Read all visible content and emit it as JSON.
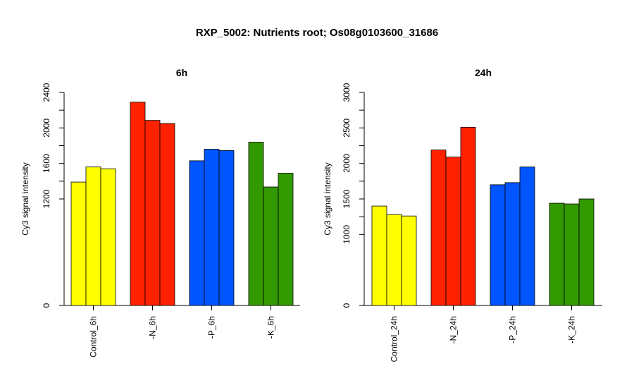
{
  "title": "RXP_5002: Nutrients root; Os08g0103600_31686",
  "chart_data": [
    {
      "type": "bar",
      "title": "6h",
      "ylabel": "Cy3 signal intensity",
      "ylim": [
        0,
        2400
      ],
      "yticks": [
        0,
        1200,
        1600,
        2000,
        2400
      ],
      "groups": [
        {
          "label": "Control_6h",
          "color": "#ffff00",
          "values": [
            1390,
            1560,
            1540
          ]
        },
        {
          "label": "-N_6h",
          "color": "#ff2200",
          "values": [
            2290,
            2085,
            2050
          ]
        },
        {
          "label": "-P_6h",
          "color": "#0055ff",
          "values": [
            1630,
            1760,
            1745
          ]
        },
        {
          "label": "-K_6h",
          "color": "#339900",
          "values": [
            1840,
            1335,
            1490
          ]
        }
      ]
    },
    {
      "type": "bar",
      "title": "24h",
      "ylabel": "Cy3 signal intensity",
      "ylim": [
        0,
        3000
      ],
      "yticks": [
        0,
        1000,
        1500,
        2000,
        2500,
        3000
      ],
      "groups": [
        {
          "label": "Control_24h",
          "color": "#ffff00",
          "values": [
            1400,
            1280,
            1260
          ]
        },
        {
          "label": "-N_24h",
          "color": "#ff2200",
          "values": [
            2190,
            2090,
            2510
          ]
        },
        {
          "label": "-P_24h",
          "color": "#0055ff",
          "values": [
            1700,
            1730,
            1950
          ]
        },
        {
          "label": "-K_24h",
          "color": "#339900",
          "values": [
            1440,
            1430,
            1500
          ]
        }
      ]
    }
  ]
}
